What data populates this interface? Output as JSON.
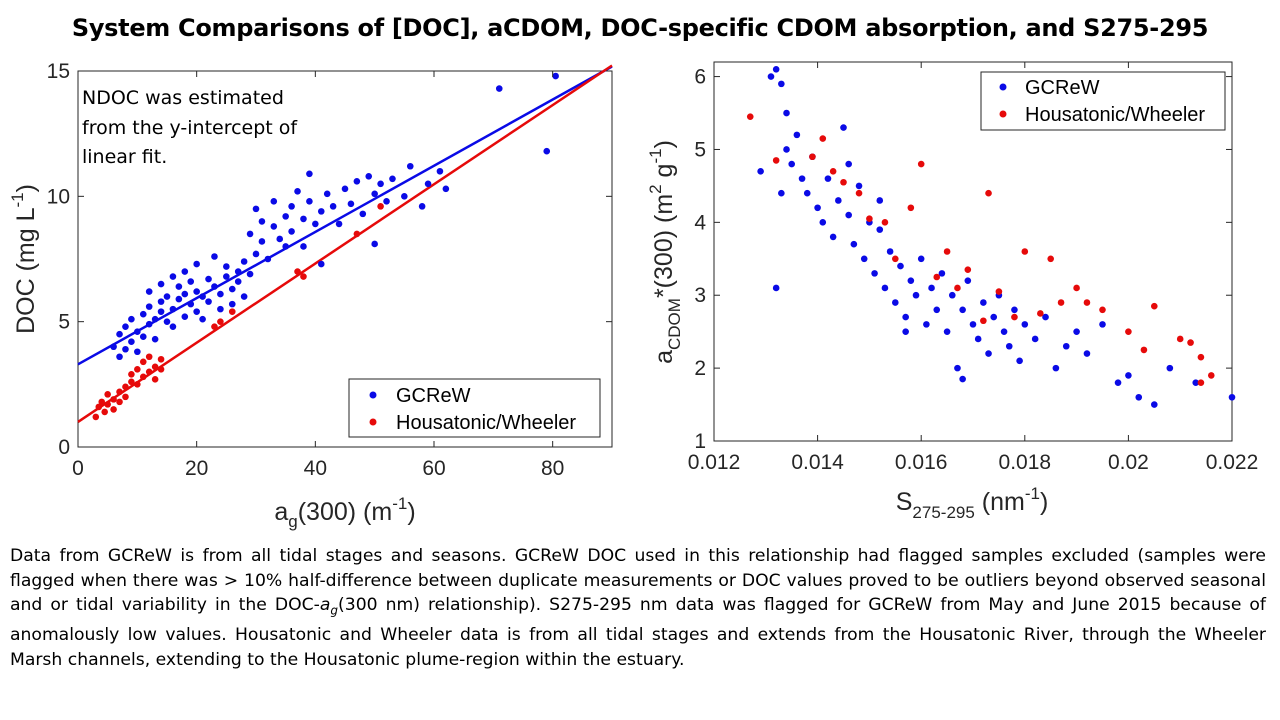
{
  "title": "System Comparisons of [DOC], aCDOM, DOC-specific CDOM absorption, and S275-295",
  "colors": {
    "gcrew": "#0a0ae6",
    "housatonic": "#e60a0a",
    "axis": "#262626"
  },
  "chart_data": [
    {
      "type": "scatter",
      "xlabel": {
        "main": "a",
        "sub": "g",
        "rest": "(300) (m",
        "sup": "-1",
        "close": ")"
      },
      "ylabel": {
        "main": "DOC (mg L",
        "sup": "-1",
        "close": ")"
      },
      "xlim": [
        0,
        90
      ],
      "ylim": [
        0,
        15
      ],
      "xticks": [
        0,
        20,
        40,
        60,
        80
      ],
      "yticks": [
        0,
        5,
        10,
        15
      ],
      "annotation": [
        "NDOC was estimated",
        "from the y-intercept of",
        "linear fit."
      ],
      "legend": {
        "position": "bottom-right"
      },
      "series": [
        {
          "name": "GCReW",
          "color": "#0a0ae6",
          "fit": {
            "intercept": 3.3,
            "slope": 0.132
          },
          "points": [
            [
              6,
              4
            ],
            [
              7,
              4.5
            ],
            [
              7,
              3.6
            ],
            [
              8,
              3.9
            ],
            [
              8,
              4.8
            ],
            [
              9,
              4.2
            ],
            [
              9,
              5.1
            ],
            [
              10,
              4.6
            ],
            [
              10,
              3.8
            ],
            [
              11,
              5.3
            ],
            [
              11,
              4.4
            ],
            [
              12,
              5.6
            ],
            [
              12,
              4.9
            ],
            [
              12,
              6.2
            ],
            [
              13,
              5.1
            ],
            [
              13,
              4.3
            ],
            [
              14,
              5.8
            ],
            [
              14,
              5.4
            ],
            [
              14,
              6.5
            ],
            [
              15,
              5
            ],
            [
              15,
              6
            ],
            [
              16,
              5.5
            ],
            [
              16,
              6.8
            ],
            [
              16,
              4.8
            ],
            [
              17,
              5.9
            ],
            [
              17,
              6.4
            ],
            [
              18,
              5.2
            ],
            [
              18,
              7
            ],
            [
              18,
              6.1
            ],
            [
              19,
              5.7
            ],
            [
              19,
              6.6
            ],
            [
              20,
              5.4
            ],
            [
              20,
              6.2
            ],
            [
              20,
              7.3
            ],
            [
              21,
              6
            ],
            [
              21,
              5.1
            ],
            [
              22,
              6.7
            ],
            [
              22,
              5.8
            ],
            [
              23,
              6.4
            ],
            [
              23,
              7.6
            ],
            [
              24,
              6.1
            ],
            [
              24,
              5.5
            ],
            [
              25,
              6.8
            ],
            [
              25,
              7.2
            ],
            [
              26,
              6.3
            ],
            [
              26,
              5.7
            ],
            [
              27,
              7
            ],
            [
              27,
              6.6
            ],
            [
              28,
              7.4
            ],
            [
              28,
              6
            ],
            [
              29,
              6.9
            ],
            [
              29,
              8.5
            ],
            [
              30,
              7.7
            ],
            [
              30,
              9.5
            ],
            [
              31,
              8.2
            ],
            [
              31,
              9
            ],
            [
              32,
              7.5
            ],
            [
              33,
              8.8
            ],
            [
              33,
              9.8
            ],
            [
              34,
              8.3
            ],
            [
              35,
              8
            ],
            [
              35,
              9.2
            ],
            [
              36,
              9.6
            ],
            [
              36,
              8.6
            ],
            [
              37,
              10.2
            ],
            [
              38,
              9.1
            ],
            [
              38,
              8
            ],
            [
              39,
              9.8
            ],
            [
              39,
              10.9
            ],
            [
              40,
              8.9
            ],
            [
              41,
              9.4
            ],
            [
              41,
              7.3
            ],
            [
              42,
              10.1
            ],
            [
              43,
              9.6
            ],
            [
              44,
              8.9
            ],
            [
              45,
              10.3
            ],
            [
              46,
              9.7
            ],
            [
              47,
              10.6
            ],
            [
              48,
              9.3
            ],
            [
              49,
              10.8
            ],
            [
              50,
              10.1
            ],
            [
              50,
              8.1
            ],
            [
              51,
              10.5
            ],
            [
              52,
              9.8
            ],
            [
              53,
              10.7
            ],
            [
              55,
              10
            ],
            [
              56,
              11.2
            ],
            [
              58,
              9.6
            ],
            [
              59,
              10.5
            ],
            [
              61,
              11
            ],
            [
              62,
              10.3
            ],
            [
              71,
              14.3
            ],
            [
              79,
              11.8
            ],
            [
              80.5,
              14.8
            ]
          ]
        },
        {
          "name": "Housatonic/Wheeler",
          "color": "#e60a0a",
          "fit": {
            "intercept": 1.0,
            "slope": 0.158
          },
          "points": [
            [
              3,
              1.2
            ],
            [
              3.5,
              1.6
            ],
            [
              4,
              1.8
            ],
            [
              4.5,
              1.4
            ],
            [
              5,
              1.7
            ],
            [
              5,
              2.1
            ],
            [
              6,
              1.5
            ],
            [
              6,
              1.9
            ],
            [
              7,
              2.2
            ],
            [
              7,
              1.8
            ],
            [
              8,
              2.4
            ],
            [
              8,
              2
            ],
            [
              9,
              2.6
            ],
            [
              9,
              2.9
            ],
            [
              10,
              3.1
            ],
            [
              10,
              2.5
            ],
            [
              11,
              3.4
            ],
            [
              11,
              2.8
            ],
            [
              12,
              3
            ],
            [
              12,
              3.6
            ],
            [
              13,
              3.2
            ],
            [
              13,
              2.7
            ],
            [
              14,
              3.5
            ],
            [
              14,
              3.1
            ],
            [
              23,
              4.8
            ],
            [
              24,
              5
            ],
            [
              26,
              5.4
            ],
            [
              37,
              7
            ],
            [
              38,
              6.8
            ],
            [
              47,
              8.5
            ],
            [
              51,
              9.6
            ]
          ]
        }
      ]
    },
    {
      "type": "scatter",
      "xlabel": {
        "main": "S",
        "sub": "275-295",
        "rest": " (nm",
        "sup": "-1",
        "close": ")"
      },
      "ylabel": {
        "main": "a",
        "sub": "CDOM",
        "rest": "*(300) (m",
        "sup1": "2",
        "mid": " g",
        "sup2": "-1",
        "close": ")"
      },
      "xlim": [
        0.012,
        0.022
      ],
      "ylim": [
        1,
        6.2
      ],
      "xticks": [
        "0.012",
        "0.014",
        "0.016",
        "0.018",
        "0.02",
        "0.022"
      ],
      "yticks": [
        1,
        2,
        3,
        4,
        5,
        6
      ],
      "legend": {
        "position": "top-right"
      },
      "series": [
        {
          "name": "GCReW",
          "color": "#0a0ae6",
          "points": [
            [
              0.0131,
              6
            ],
            [
              0.0132,
              6.1
            ],
            [
              0.0133,
              5.9
            ],
            [
              0.0134,
              5.5
            ],
            [
              0.0132,
              3.1
            ],
            [
              0.0134,
              5
            ],
            [
              0.0135,
              4.8
            ],
            [
              0.0136,
              5.2
            ],
            [
              0.0137,
              4.6
            ],
            [
              0.0138,
              4.4
            ],
            [
              0.0139,
              4.9
            ],
            [
              0.014,
              4.2
            ],
            [
              0.0141,
              4
            ],
            [
              0.0142,
              4.6
            ],
            [
              0.0143,
              3.8
            ],
            [
              0.0144,
              4.3
            ],
            [
              0.0145,
              5.3
            ],
            [
              0.0146,
              4.1
            ],
            [
              0.0147,
              3.7
            ],
            [
              0.0148,
              4.5
            ],
            [
              0.0149,
              3.5
            ],
            [
              0.015,
              4
            ],
            [
              0.0151,
              3.3
            ],
            [
              0.0152,
              3.9
            ],
            [
              0.0153,
              3.1
            ],
            [
              0.0154,
              3.6
            ],
            [
              0.0155,
              2.9
            ],
            [
              0.0156,
              3.4
            ],
            [
              0.0157,
              2.7
            ],
            [
              0.0158,
              3.2
            ],
            [
              0.0159,
              3
            ],
            [
              0.016,
              3.5
            ],
            [
              0.0161,
              2.6
            ],
            [
              0.0162,
              3.1
            ],
            [
              0.0163,
              2.8
            ],
            [
              0.0164,
              3.3
            ],
            [
              0.0165,
              2.5
            ],
            [
              0.0166,
              3
            ],
            [
              0.0167,
              2
            ],
            [
              0.0168,
              2.8
            ],
            [
              0.0169,
              3.2
            ],
            [
              0.017,
              2.6
            ],
            [
              0.0171,
              2.4
            ],
            [
              0.0172,
              2.9
            ],
            [
              0.0173,
              2.2
            ],
            [
              0.0174,
              2.7
            ],
            [
              0.0175,
              3
            ],
            [
              0.0176,
              2.5
            ],
            [
              0.0177,
              2.3
            ],
            [
              0.0178,
              2.8
            ],
            [
              0.0179,
              2.1
            ],
            [
              0.018,
              2.6
            ],
            [
              0.0182,
              2.4
            ],
            [
              0.0184,
              2.7
            ],
            [
              0.0186,
              2
            ],
            [
              0.0188,
              2.3
            ],
            [
              0.019,
              2.5
            ],
            [
              0.0192,
              2.2
            ],
            [
              0.0195,
              2.6
            ],
            [
              0.0198,
              1.8
            ],
            [
              0.02,
              1.9
            ],
            [
              0.0202,
              1.6
            ],
            [
              0.0205,
              1.5
            ],
            [
              0.0208,
              2
            ],
            [
              0.0213,
              1.8
            ],
            [
              0.022,
              1.6
            ],
            [
              0.0129,
              4.7
            ],
            [
              0.0133,
              4.4
            ],
            [
              0.0146,
              4.8
            ],
            [
              0.0152,
              4.3
            ],
            [
              0.0157,
              2.5
            ],
            [
              0.0168,
              1.85
            ]
          ]
        },
        {
          "name": "Housatonic/Wheeler",
          "color": "#e60a0a",
          "points": [
            [
              0.0127,
              5.45
            ],
            [
              0.0132,
              4.85
            ],
            [
              0.0139,
              4.9
            ],
            [
              0.0141,
              5.15
            ],
            [
              0.0143,
              4.7
            ],
            [
              0.0145,
              4.55
            ],
            [
              0.0148,
              4.4
            ],
            [
              0.015,
              4.05
            ],
            [
              0.0153,
              4
            ],
            [
              0.0155,
              3.5
            ],
            [
              0.0158,
              4.2
            ],
            [
              0.016,
              4.8
            ],
            [
              0.0163,
              3.25
            ],
            [
              0.0165,
              3.6
            ],
            [
              0.0167,
              3.1
            ],
            [
              0.0169,
              3.35
            ],
            [
              0.0172,
              2.65
            ],
            [
              0.0173,
              4.4
            ],
            [
              0.0175,
              3.05
            ],
            [
              0.0178,
              2.7
            ],
            [
              0.018,
              3.6
            ],
            [
              0.0183,
              2.75
            ],
            [
              0.0185,
              3.5
            ],
            [
              0.0187,
              2.9
            ],
            [
              0.019,
              3.1
            ],
            [
              0.0192,
              2.9
            ],
            [
              0.0195,
              2.8
            ],
            [
              0.02,
              2.5
            ],
            [
              0.0203,
              2.25
            ],
            [
              0.0205,
              2.85
            ],
            [
              0.021,
              2.4
            ],
            [
              0.0212,
              2.35
            ],
            [
              0.0214,
              2.15
            ],
            [
              0.0216,
              1.9
            ],
            [
              0.0214,
              1.8
            ]
          ]
        }
      ]
    }
  ],
  "caption": {
    "part1": "Data from GCReW is from all tidal stages and seasons. GCReW DOC used in this relationship had flagged samples excluded (samples were flagged when there was > 10% half-difference between duplicate measurements or DOC values proved to be outliers beyond observed seasonal and or tidal variability in the DOC-",
    "italic": "a",
    "sub": "g",
    "part2": "(300 nm) relationship). S275-295 nm data was flagged for GCReW from May and June 2015 because of anomalously low values. Housatonic and Wheeler data is from all tidal stages and extends from the Housatonic River, through the Wheeler Marsh channels, extending to the Housatonic plume-region within the estuary."
  }
}
